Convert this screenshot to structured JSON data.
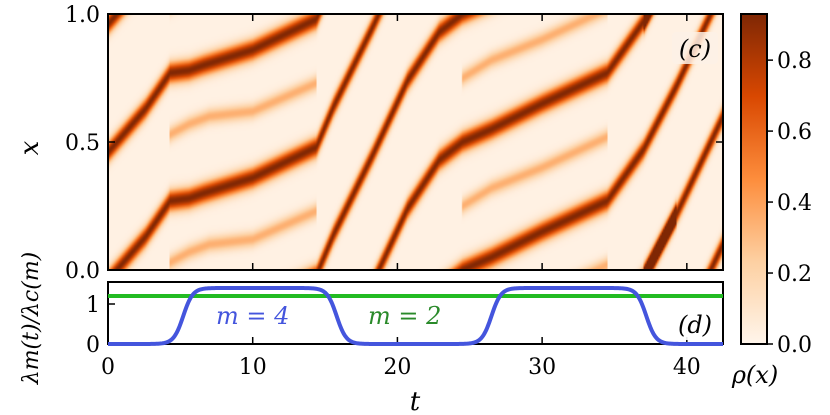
{
  "chart_data": [
    {
      "type": "heatmap",
      "panel_label": "(c)",
      "title": "",
      "ylabel": "x",
      "xlim": [
        0,
        42.5
      ],
      "ylim": [
        0,
        1
      ],
      "x_ticks": [
        0,
        10,
        20,
        30,
        40
      ],
      "y_ticks": [
        0.0,
        0.5,
        1.0
      ],
      "y_tick_labels": [
        "0.0",
        "0.5",
        "1.0"
      ],
      "colorbar": {
        "label": "ρ(x)",
        "range": [
          0,
          0.93
        ],
        "ticks": [
          0.0,
          0.2,
          0.4,
          0.6,
          0.8
        ],
        "tick_labels": [
          "0.0",
          "0.2",
          "0.4",
          "0.6",
          "0.8"
        ],
        "cmap_colors": [
          "#fff5eb",
          "#fdd0a2",
          "#fd8d3c",
          "#d94801",
          "#7f2704"
        ]
      },
      "bands": [
        {
          "peak": 0.9,
          "width": 0.028,
          "points": [
            [
              0,
              0.46
            ],
            [
              2.6,
              0.63
            ],
            [
              4.3,
              0.77
            ],
            [
              5.6,
              0.78
            ],
            [
              6.6,
              0.8
            ],
            [
              10,
              0.86
            ],
            [
              14.4,
              0.98
            ],
            [
              15.6,
              1.14
            ],
            [
              18.3,
              1.45
            ]
          ]
        },
        {
          "peak": 0.9,
          "width": 0.028,
          "points": [
            [
              0,
              -0.04
            ],
            [
              2.6,
              0.13
            ],
            [
              4.3,
              0.27
            ],
            [
              5.6,
              0.28
            ],
            [
              6.6,
              0.3
            ],
            [
              10,
              0.36
            ],
            [
              14.4,
              0.48
            ],
            [
              15.6,
              0.64
            ],
            [
              18.3,
              0.95
            ]
          ]
        },
        {
          "peak": 0.9,
          "width": 0.028,
          "points": [
            [
              18.3,
              -0.05
            ],
            [
              20.7,
              0.24
            ],
            [
              22.9,
              0.43
            ],
            [
              24.5,
              0.5
            ],
            [
              26.5,
              0.55
            ],
            [
              30,
              0.65
            ],
            [
              34.5,
              0.77
            ],
            [
              37,
              0.97
            ],
            [
              39.3,
              1.22
            ]
          ]
        },
        {
          "peak": 0.9,
          "width": 0.028,
          "points": [
            [
              18.3,
              0.45
            ],
            [
              20.7,
              0.74
            ],
            [
              22.9,
              0.93
            ],
            [
              24.5,
              1.0
            ],
            [
              26.5,
              1.05
            ],
            [
              30,
              1.15
            ],
            [
              34.5,
              1.27
            ],
            [
              37,
              1.47
            ]
          ]
        },
        {
          "peak": 0.9,
          "width": 0.028,
          "points": [
            [
              37,
              -0.03
            ],
            [
              39.3,
              0.22
            ],
            [
              41.4,
              0.47
            ],
            [
              42.5,
              0.6
            ]
          ]
        },
        {
          "peak": 0.9,
          "width": 0.028,
          "points": [
            [
              37,
              0.47
            ],
            [
              39.3,
              0.72
            ],
            [
              41.4,
              0.97
            ],
            [
              42.5,
              1.1
            ]
          ]
        },
        {
          "peak": 0.32,
          "width": 0.022,
          "points": [
            [
              4.3,
              0.53
            ],
            [
              5.6,
              0.57
            ],
            [
              7,
              0.6
            ],
            [
              10,
              0.62
            ],
            [
              14.4,
              0.73
            ]
          ]
        },
        {
          "peak": 0.32,
          "width": 0.022,
          "points": [
            [
              4.3,
              0.03
            ],
            [
              5.6,
              0.07
            ],
            [
              7,
              0.1
            ],
            [
              10,
              0.12
            ],
            [
              14.4,
              0.23
            ]
          ]
        },
        {
          "peak": 0.32,
          "width": 0.022,
          "points": [
            [
              24.5,
              0.25
            ],
            [
              26.5,
              0.32
            ],
            [
              30,
              0.4
            ],
            [
              34.5,
              0.52
            ]
          ]
        },
        {
          "peak": 0.32,
          "width": 0.022,
          "points": [
            [
              24.5,
              0.75
            ],
            [
              26.5,
              0.82
            ],
            [
              30,
              0.9
            ],
            [
              34.5,
              1.02
            ]
          ]
        }
      ]
    },
    {
      "type": "line",
      "panel_label": "(d)",
      "title": "",
      "xlabel": "t",
      "ylabel": "λm(t)/λc(m)",
      "xlim": [
        0,
        42.5
      ],
      "ylim": [
        0,
        1.55
      ],
      "x_ticks": [
        0,
        10,
        20,
        30,
        40
      ],
      "y_ticks": [
        0,
        1
      ],
      "series": [
        {
          "name": "m = 2",
          "color": "#22bb22",
          "constant": 1.2
        },
        {
          "name": "m = 4",
          "color": "#4455dd",
          "plateau": 1.4,
          "ramps": [
            [
              5.2,
              1
            ],
            [
              15.8,
              -1
            ],
            [
              26.5,
              1
            ],
            [
              37.2,
              -1
            ]
          ]
        }
      ],
      "annotations": [
        {
          "text": "m = 4",
          "color": "#4455dd",
          "x": 10,
          "y": 0.6
        },
        {
          "text": "m = 2",
          "color": "#2a8a2a",
          "x": 20.5,
          "y": 0.6
        }
      ]
    }
  ]
}
